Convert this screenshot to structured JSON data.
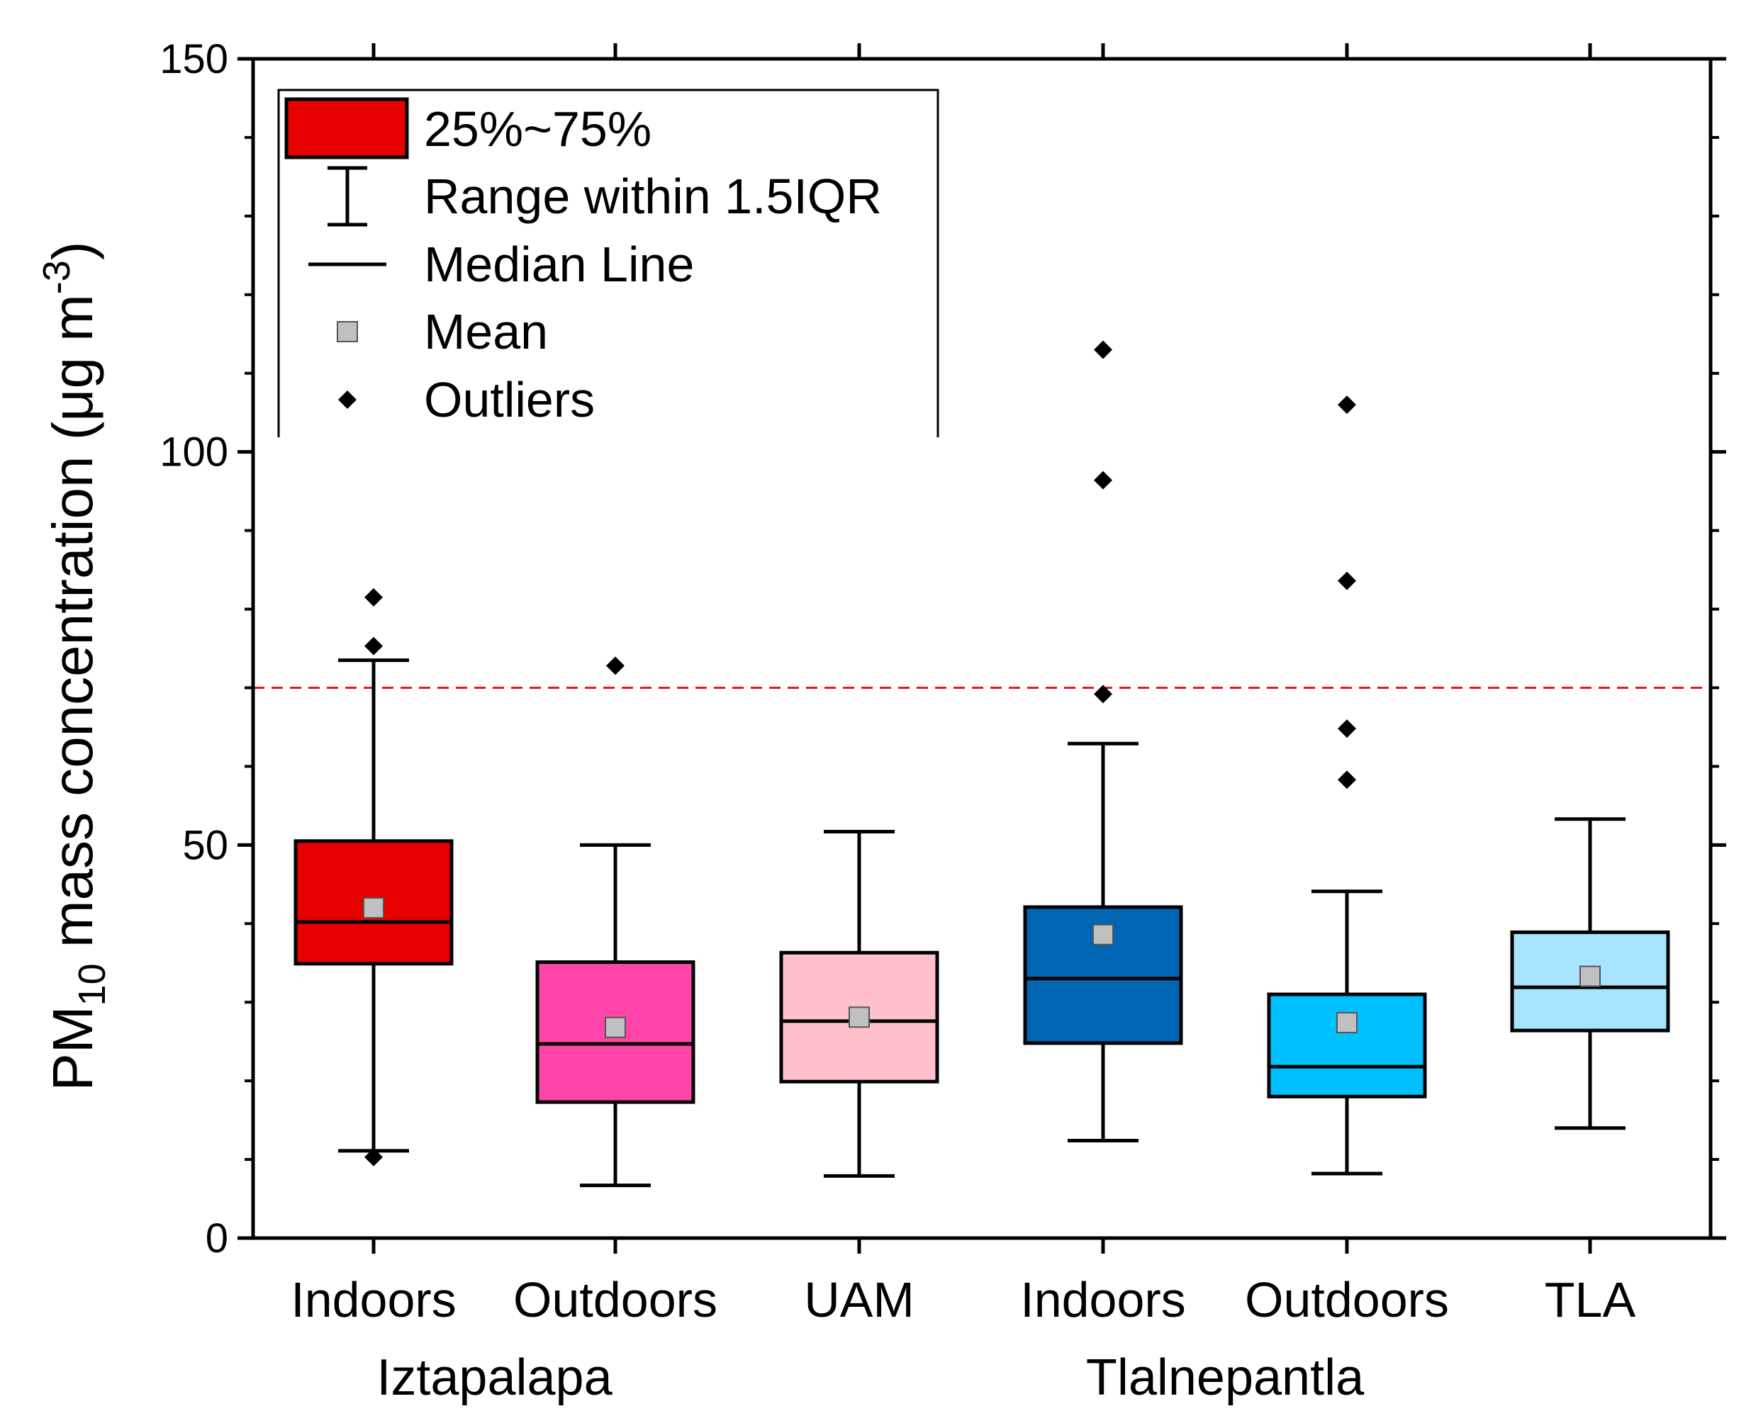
{
  "chart_data": {
    "type": "box",
    "ylabel": {
      "main": "PM",
      "sub": "10",
      "rest": " mass concentration (μg m",
      "sup": "-3",
      "close": ")"
    },
    "ylim": [
      0,
      150
    ],
    "yticks": [
      0,
      50,
      100,
      150
    ],
    "ytick_labels": [
      "0",
      "50",
      "100",
      "150"
    ],
    "minor_yticks": [
      10,
      20,
      30,
      40,
      60,
      70,
      80,
      90,
      110,
      120,
      130,
      140
    ],
    "reference_line": {
      "value": 70,
      "color": "#e31a1c",
      "style": "dashed"
    },
    "categories": [
      "Indoors",
      "Outdoors",
      "UAM",
      "Indoors",
      "Outdoors",
      "TLA"
    ],
    "groups": [
      {
        "label": "Iztapalapa",
        "spans": [
          0,
          1
        ]
      },
      {
        "label": "Tlalnepantla",
        "spans": [
          3,
          4
        ]
      }
    ],
    "boxes": [
      {
        "category": "Indoors",
        "group": "Iztapalapa",
        "q1": 34.9,
        "median": 40.2,
        "q3": 50.5,
        "whisker_low": 11.1,
        "whisker_high": 73.5,
        "mean": 42.0,
        "outliers": [
          81.5,
          75.3,
          10.3
        ],
        "color": "#e60000"
      },
      {
        "category": "Outdoors",
        "group": "Iztapalapa",
        "q1": 17.3,
        "median": 24.7,
        "q3": 35.1,
        "whisker_low": 6.7,
        "whisker_high": 50.0,
        "mean": 26.8,
        "outliers": [
          72.8
        ],
        "color": "#ff44aa"
      },
      {
        "category": "UAM",
        "group": "",
        "q1": 19.9,
        "median": 27.6,
        "q3": 36.3,
        "whisker_low": 7.9,
        "whisker_high": 51.7,
        "mean": 28.1,
        "outliers": [],
        "color": "#ffc0cb"
      },
      {
        "category": "Indoors",
        "group": "Tlalnepantla",
        "q1": 24.8,
        "median": 33.0,
        "q3": 42.1,
        "whisker_low": 12.4,
        "whisker_high": 62.9,
        "mean": 38.6,
        "outliers": [
          113.0,
          96.4,
          69.2
        ],
        "color": "#0066b3"
      },
      {
        "category": "Outdoors",
        "group": "Tlalnepantla",
        "q1": 18.0,
        "median": 21.8,
        "q3": 31.0,
        "whisker_low": 8.2,
        "whisker_high": 44.1,
        "mean": 27.4,
        "outliers": [
          106.0,
          83.6,
          64.8,
          58.3
        ],
        "color": "#00bfff"
      },
      {
        "category": "TLA",
        "group": "",
        "q1": 26.4,
        "median": 31.9,
        "q3": 38.9,
        "whisker_low": 14.0,
        "whisker_high": 53.3,
        "mean": 33.3,
        "outliers": [],
        "color": "#a6e4ff"
      }
    ],
    "legend": {
      "placement": "top-left",
      "items": [
        {
          "kind": "box",
          "label": "25%~75%"
        },
        {
          "kind": "range",
          "label": "Range within 1.5IQR"
        },
        {
          "kind": "median",
          "label": "Median Line"
        },
        {
          "kind": "mean",
          "label": "Mean"
        },
        {
          "kind": "outlier",
          "label": "Outliers"
        }
      ]
    },
    "colors": {
      "mean_marker": "#c0c0c0",
      "outlier_marker": "#000000",
      "axis": "#000000"
    }
  }
}
